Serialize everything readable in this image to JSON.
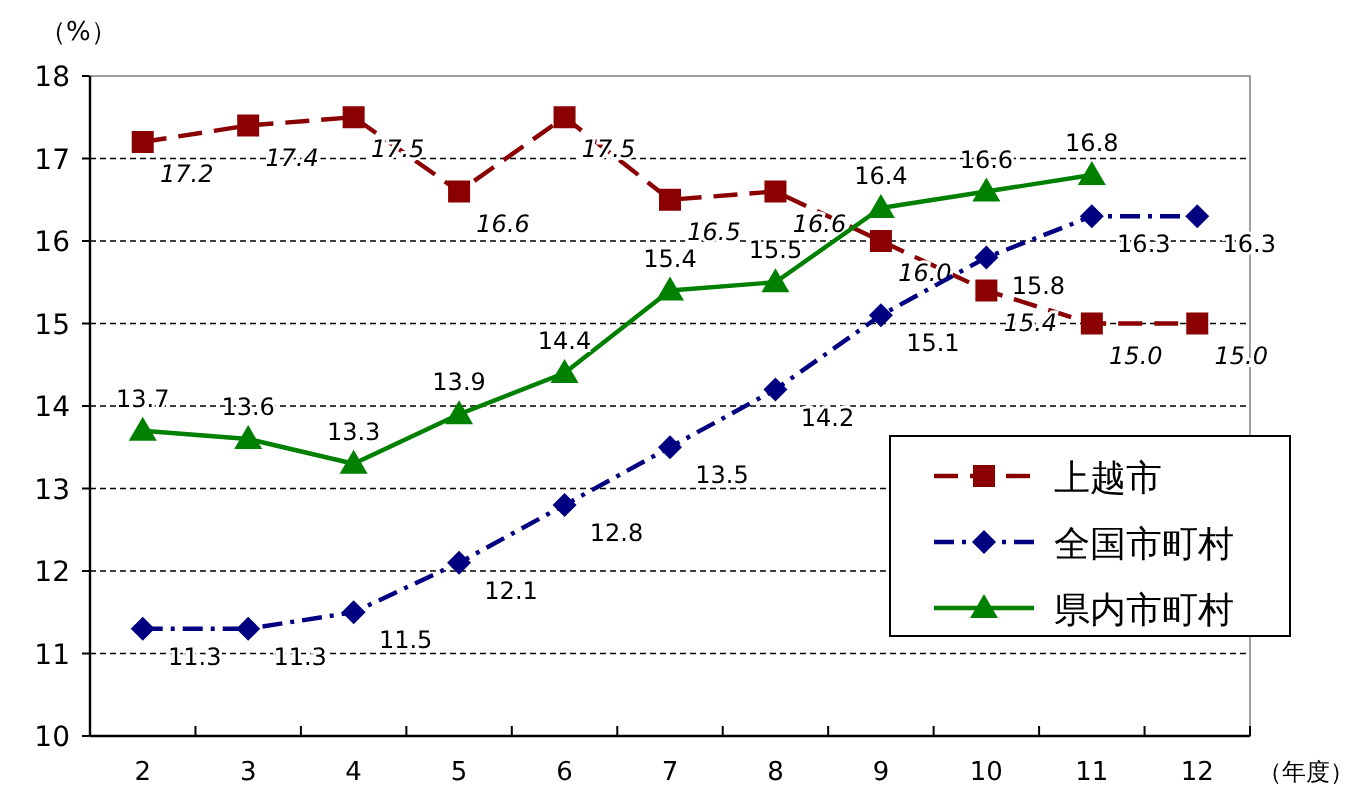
{
  "chart_data": {
    "type": "line",
    "ylabel": "（%）",
    "xlabel": "（年度）",
    "categories": [
      "2",
      "3",
      "4",
      "5",
      "6",
      "7",
      "8",
      "9",
      "10",
      "11",
      "12"
    ],
    "ylim": [
      10,
      18
    ],
    "yticks": [
      10,
      11,
      12,
      13,
      14,
      15,
      16,
      17,
      18
    ],
    "grid": "y",
    "legend": "bottom right",
    "series": [
      {
        "name": "上越市",
        "color": "#8b0000",
        "line_style": "dashed",
        "marker": "square",
        "values": [
          17.2,
          17.4,
          17.5,
          16.6,
          17.5,
          16.5,
          16.6,
          16.0,
          15.4,
          15.0,
          15.0
        ],
        "value_labels": [
          "17.2",
          "17.4",
          "17.5",
          "16.6",
          "17.5",
          "16.5",
          "16.6",
          "16.0",
          "15.4",
          "15.0",
          "15.0"
        ]
      },
      {
        "name": "全国市町村",
        "color": "#000080",
        "line_style": "dashdot",
        "marker": "diamond",
        "values": [
          11.3,
          11.3,
          11.5,
          12.1,
          12.8,
          13.5,
          14.2,
          15.1,
          15.8,
          16.3,
          16.3
        ],
        "value_labels": [
          "11.3",
          "11.3",
          "11.5",
          "12.1",
          "12.8",
          "13.5",
          "14.2",
          "15.1",
          "15.8",
          "16.3",
          "16.3"
        ]
      },
      {
        "name": "県内市町村",
        "color": "#008000",
        "line_style": "solid",
        "marker": "triangle",
        "values": [
          13.7,
          13.6,
          13.3,
          13.9,
          14.4,
          15.4,
          15.5,
          16.4,
          16.6,
          16.8,
          null
        ],
        "value_labels": [
          "13.7",
          "13.6",
          "13.3",
          "13.9",
          "14.4",
          "15.4",
          "15.5",
          "16.4",
          "16.6",
          "16.8",
          null
        ]
      }
    ]
  }
}
